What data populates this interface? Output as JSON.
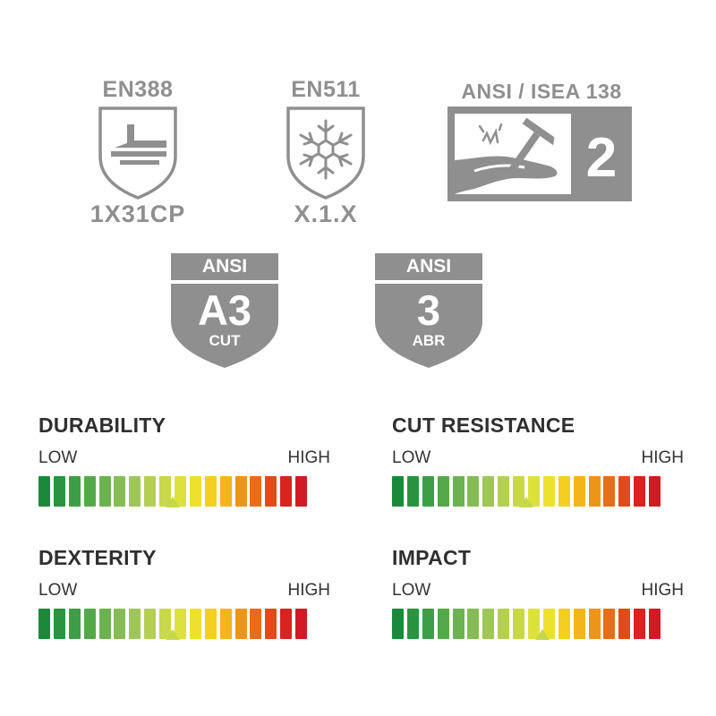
{
  "standards": {
    "en388": {
      "title": "EN388",
      "rating": "1X31CP",
      "icon": "hammer-anvil-icon"
    },
    "en511": {
      "title": "EN511",
      "rating": "X.1.X",
      "icon": "snowflake-icon"
    },
    "ansi_isea": {
      "title": "ANSI / ISEA 138",
      "level": "2",
      "icon": "impact-hand-hammer-icon"
    }
  },
  "ansi_badges": {
    "cut": {
      "label": "ANSI",
      "level": "A3",
      "type": "CUT"
    },
    "abrasion": {
      "label": "ANSI",
      "level": "3",
      "type": "ABR"
    }
  },
  "meters": {
    "durability": {
      "title": "DURABILITY",
      "low": "LOW",
      "high": "HIGH",
      "level": 0.5
    },
    "cut": {
      "title": "CUT RESISTANCE",
      "low": "LOW",
      "high": "HIGH",
      "level": 0.5
    },
    "dexterity": {
      "title": "DEXTERITY",
      "low": "LOW",
      "high": "HIGH",
      "level": 0.5
    },
    "impact": {
      "title": "IMPACT",
      "low": "LOW",
      "high": "HIGH",
      "level": 0.56
    }
  },
  "colors": {
    "badge_gray": "#8f8f8f",
    "meter_gradient": [
      "#1a8a3a",
      "#2a9440",
      "#3d9e45",
      "#55a84a",
      "#6cb250",
      "#85bc55",
      "#9ec65a",
      "#b4cf54",
      "#c8d84a",
      "#dde13c",
      "#eee12e",
      "#f3cf20",
      "#f3b51c",
      "#ee9419",
      "#e86d18",
      "#e24a19",
      "#d92320",
      "#d11a24"
    ]
  }
}
